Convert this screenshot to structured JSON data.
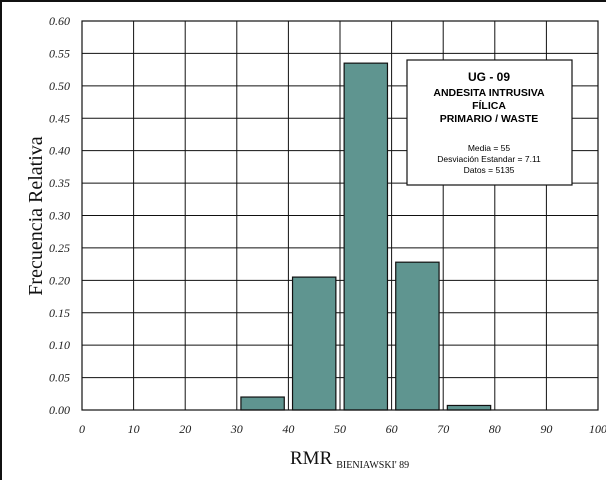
{
  "chart_data": {
    "type": "bar",
    "xlabel": "RMR",
    "xlabel_sub": "BIENIAWSKI' 89",
    "ylabel": "Frecuencia Relativa",
    "xlim": [
      0,
      100
    ],
    "ylim": [
      0,
      0.6
    ],
    "xticks": [
      "0",
      "10",
      "20",
      "30",
      "40",
      "50",
      "60",
      "70",
      "80",
      "90",
      "100"
    ],
    "yticks": [
      "0.00",
      "0.05",
      "0.10",
      "0.15",
      "0.20",
      "0.25",
      "0.30",
      "0.35",
      "0.40",
      "0.45",
      "0.50",
      "0.55",
      "0.60"
    ],
    "grid": true,
    "bar_color": "#5f9590",
    "bars": [
      {
        "x0": 30,
        "x1": 40,
        "value": 0.02
      },
      {
        "x0": 40,
        "x1": 50,
        "value": 0.205
      },
      {
        "x0": 50,
        "x1": 60,
        "value": 0.535
      },
      {
        "x0": 60,
        "x1": 70,
        "value": 0.228
      },
      {
        "x0": 70,
        "x1": 80,
        "value": 0.007
      }
    ],
    "legend": {
      "placement": "top-right",
      "title": "UG - 09",
      "lines": [
        "ANDESITA INTRUSIVA",
        "FÍLICA",
        "PRIMARIO / WASTE"
      ],
      "stats": [
        "Media = 55",
        "Desviación Estandar = 7.11",
        "Datos = 5135"
      ]
    }
  }
}
